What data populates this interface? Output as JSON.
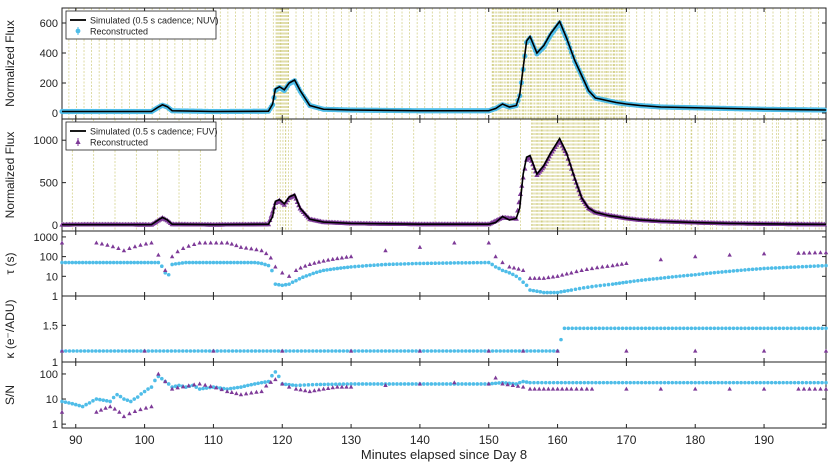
{
  "figure": {
    "xlabel": "Minutes elapsed since Day 8",
    "xlim": [
      88,
      199
    ],
    "xticks": [
      90,
      100,
      110,
      120,
      130,
      140,
      150,
      160,
      170,
      180,
      190
    ]
  },
  "colors": {
    "simulated": "#000000",
    "nuv": "#4FBDE8",
    "fuv": "#7E3A98",
    "vline": "#C8C46A"
  },
  "chart_data": [
    {
      "type": "line",
      "panel": "nuv-flux",
      "ylabel": "Normalized Flux",
      "ylim": [
        -40,
        700
      ],
      "yticks": [
        0,
        200,
        400,
        600
      ],
      "grid": false,
      "legend": {
        "placement": "top-left",
        "entries": [
          {
            "label": "Simulated (0.5 s cadence; NUV)",
            "series": "simulated",
            "marker": "line"
          },
          {
            "label": "Reconstructed",
            "series": "reconstructed",
            "marker": "errorbar-dot"
          }
        ]
      },
      "series": [
        {
          "name": "Simulated (0.5 s cadence; NUV)",
          "x": [
            88,
            101,
            102,
            102.6,
            103.3,
            104,
            110,
            118,
            118.6,
            119,
            119.6,
            120.3,
            121,
            121.8,
            122.6,
            124,
            126,
            130,
            140,
            150,
            151,
            152,
            153,
            154,
            154.5,
            155,
            155.5,
            156,
            157,
            158,
            159,
            160.3,
            161.3,
            162.5,
            163.5,
            164.5,
            165.5,
            166.5,
            167.5,
            168.5,
            170,
            172,
            175,
            180,
            185,
            190,
            195,
            199
          ],
          "values": [
            10,
            10,
            40,
            55,
            42,
            15,
            10,
            12,
            60,
            160,
            175,
            155,
            200,
            220,
            150,
            50,
            25,
            20,
            15,
            15,
            30,
            60,
            40,
            50,
            120,
            300,
            480,
            510,
            400,
            450,
            530,
            610,
            500,
            350,
            250,
            150,
            100,
            90,
            80,
            70,
            60,
            50,
            40,
            35,
            30,
            25,
            22,
            20
          ]
        },
        {
          "name": "Reconstructed",
          "x": [
            88,
            101,
            102,
            102.6,
            103.3,
            104,
            110,
            118,
            118.6,
            119,
            119.6,
            120.3,
            121,
            121.8,
            122.6,
            124,
            126,
            130,
            140,
            150,
            151,
            152,
            153,
            154,
            154.5,
            155,
            155.5,
            156,
            157,
            158,
            159,
            160.3,
            161.3,
            162.5,
            163.5,
            164.5,
            165.5,
            166.5,
            167.5,
            168.5,
            170,
            172,
            175,
            180,
            185,
            190,
            195,
            199
          ],
          "values": [
            10,
            10,
            38,
            52,
            40,
            15,
            10,
            12,
            55,
            150,
            170,
            150,
            195,
            215,
            145,
            50,
            25,
            20,
            15,
            15,
            30,
            55,
            40,
            50,
            115,
            290,
            470,
            500,
            395,
            440,
            520,
            600,
            495,
            345,
            250,
            150,
            100,
            90,
            80,
            70,
            60,
            50,
            40,
            35,
            30,
            25,
            22,
            20
          ]
        }
      ]
    },
    {
      "type": "line",
      "panel": "fuv-flux",
      "ylabel": "Normalized Flux",
      "ylim": [
        -70,
        1250
      ],
      "yticks": [
        0,
        500,
        1000
      ],
      "grid": false,
      "legend": {
        "placement": "top-left",
        "entries": [
          {
            "label": "Simulated (0.5 s cadence; FUV)",
            "series": "simulated",
            "marker": "line"
          },
          {
            "label": "Reconstructed",
            "series": "reconstructed",
            "marker": "errorbar-triangle"
          }
        ]
      },
      "series": [
        {
          "name": "Simulated (0.5 s cadence; FUV)",
          "x": [
            88,
            101,
            102,
            102.6,
            103.3,
            104,
            110,
            118,
            118.6,
            119,
            119.6,
            120.3,
            121,
            121.8,
            122.6,
            124,
            126,
            130,
            140,
            150,
            151,
            152,
            153,
            154,
            154.5,
            155,
            155.5,
            156,
            157,
            158,
            159,
            160.3,
            161.3,
            162.5,
            163.5,
            164.5,
            165.5,
            166.5,
            167.5,
            168.5,
            170,
            172,
            175,
            180,
            185,
            190,
            195,
            199
          ],
          "values": [
            5,
            5,
            60,
            90,
            60,
            10,
            5,
            10,
            100,
            280,
            300,
            250,
            330,
            360,
            200,
            70,
            35,
            20,
            10,
            10,
            30,
            100,
            60,
            80,
            200,
            600,
            800,
            820,
            600,
            700,
            850,
            1020,
            850,
            550,
            320,
            200,
            150,
            130,
            110,
            100,
            80,
            60,
            45,
            30,
            20,
            15,
            10,
            8
          ]
        },
        {
          "name": "Reconstructed",
          "x": [
            88,
            93,
            101,
            102,
            102.6,
            103.3,
            104,
            110,
            118,
            119,
            119.6,
            120.3,
            121,
            121.8,
            122.6,
            124,
            126,
            130,
            140,
            150,
            152,
            154,
            155,
            155.5,
            156,
            157,
            158,
            159,
            160.3,
            161.3,
            162.5,
            163.5,
            164.5,
            165.5,
            166.5,
            168.5,
            170,
            172,
            175,
            180,
            185,
            190,
            195,
            199
          ],
          "values": [
            5,
            8,
            5,
            55,
            85,
            55,
            10,
            5,
            10,
            260,
            290,
            240,
            320,
            350,
            195,
            70,
            35,
            20,
            10,
            10,
            90,
            75,
            560,
            770,
            800,
            590,
            690,
            840,
            1000,
            840,
            545,
            320,
            200,
            150,
            130,
            100,
            80,
            60,
            45,
            30,
            20,
            15,
            10,
            8
          ]
        }
      ]
    },
    {
      "type": "scatter",
      "panel": "tau",
      "ylabel": "τ (s)",
      "scale": "log",
      "ylim": [
        1,
        2000
      ],
      "yticks": [
        1,
        10,
        100,
        1000
      ],
      "grid": false,
      "series": [
        {
          "name": "NUV",
          "x": [
            88,
            90,
            92,
            94,
            96,
            98,
            100,
            101,
            102,
            103,
            103.5,
            104,
            106,
            108,
            110,
            112,
            114,
            116,
            117,
            118,
            119,
            120,
            121,
            122,
            124,
            126,
            128,
            130,
            135,
            140,
            145,
            150,
            151,
            152,
            153,
            154,
            155,
            156,
            158,
            160,
            162,
            165,
            168,
            170,
            175,
            180,
            185,
            190,
            195,
            199
          ],
          "values": [
            50,
            50,
            50,
            50,
            50,
            50,
            50,
            50,
            50,
            15,
            12,
            40,
            50,
            50,
            50,
            50,
            50,
            50,
            45,
            35,
            4,
            3.5,
            4,
            6,
            12,
            20,
            25,
            30,
            40,
            45,
            48,
            50,
            30,
            20,
            15,
            10,
            5,
            2,
            1.5,
            1.5,
            2,
            3,
            4,
            5,
            8,
            12,
            18,
            25,
            30,
            35
          ]
        },
        {
          "name": "FUV",
          "x": [
            88,
            93,
            97,
            101,
            102,
            103,
            104,
            108,
            112,
            114,
            117,
            119,
            120,
            121,
            122,
            124,
            126,
            128,
            130,
            135,
            140,
            145,
            150,
            151,
            152,
            153,
            155,
            156,
            158,
            160,
            162,
            165,
            168,
            170,
            175,
            180,
            185,
            190,
            195,
            199
          ],
          "values": [
            500,
            500,
            200,
            500,
            120,
            20,
            100,
            500,
            500,
            300,
            200,
            30,
            15,
            10,
            20,
            40,
            60,
            80,
            100,
            200,
            300,
            500,
            500,
            100,
            50,
            30,
            20,
            8,
            8,
            10,
            15,
            25,
            35,
            45,
            70,
            100,
            120,
            140,
            150,
            160
          ]
        }
      ]
    },
    {
      "type": "scatter",
      "panel": "kappa",
      "ylabel": "κ (e⁻/ADU)",
      "ylim": [
        1.0,
        1.9
      ],
      "yticks": [
        1,
        1.5
      ],
      "grid": false,
      "series": [
        {
          "name": "NUV",
          "x": [
            88,
            100,
            110,
            120,
            130,
            140,
            150,
            155,
            160,
            161,
            170,
            180,
            190,
            199
          ],
          "values": [
            1.15,
            1.15,
            1.15,
            1.15,
            1.15,
            1.15,
            1.15,
            1.15,
            1.15,
            1.46,
            1.46,
            1.46,
            1.46,
            1.46
          ]
        },
        {
          "name": "FUV",
          "x": [
            88,
            100,
            110,
            120,
            130,
            140,
            150,
            155,
            160,
            170,
            180,
            190,
            199
          ],
          "values": [
            1.15,
            1.15,
            1.15,
            1.15,
            1.15,
            1.15,
            1.15,
            1.15,
            1.15,
            1.15,
            1.15,
            1.15,
            1.15
          ]
        }
      ]
    },
    {
      "type": "scatter",
      "panel": "snr",
      "ylabel": "S/N",
      "scale": "log",
      "ylim": [
        0.7,
        300
      ],
      "yticks": [
        1,
        10,
        100
      ],
      "grid": false,
      "series": [
        {
          "name": "NUV",
          "x": [
            88,
            89,
            90,
            91,
            92,
            93,
            94,
            95,
            96,
            97,
            98,
            99,
            100,
            101,
            102,
            103,
            104,
            105,
            106,
            107,
            108,
            110,
            112,
            114,
            116,
            118,
            119,
            120,
            122,
            125,
            130,
            135,
            140,
            145,
            150,
            152,
            154,
            155,
            156,
            160,
            165,
            170,
            175,
            180,
            185,
            190,
            195,
            199
          ],
          "values": [
            8,
            7,
            6,
            5,
            7,
            10,
            9,
            8,
            15,
            10,
            8,
            12,
            20,
            30,
            80,
            50,
            30,
            35,
            30,
            35,
            25,
            30,
            25,
            30,
            40,
            50,
            120,
            40,
            35,
            38,
            40,
            40,
            40,
            40,
            40,
            45,
            40,
            50,
            45,
            45,
            45,
            45,
            45,
            45,
            45,
            45,
            45,
            45
          ]
        },
        {
          "name": "FUV",
          "x": [
            88,
            93,
            95,
            97,
            101,
            102,
            103,
            104,
            108,
            112,
            114,
            117,
            119,
            120,
            121,
            122,
            124,
            126,
            128,
            130,
            135,
            140,
            145,
            150,
            151,
            152,
            155,
            156,
            158,
            160,
            162,
            165,
            170,
            175,
            180,
            185,
            190,
            195,
            199
          ],
          "values": [
            3,
            3,
            5,
            2,
            5,
            100,
            50,
            25,
            40,
            20,
            15,
            20,
            60,
            40,
            30,
            25,
            20,
            25,
            30,
            30,
            35,
            40,
            45,
            40,
            70,
            40,
            30,
            25,
            25,
            25,
            25,
            25,
            25,
            25,
            25,
            25,
            25,
            25,
            25
          ]
        }
      ]
    }
  ]
}
